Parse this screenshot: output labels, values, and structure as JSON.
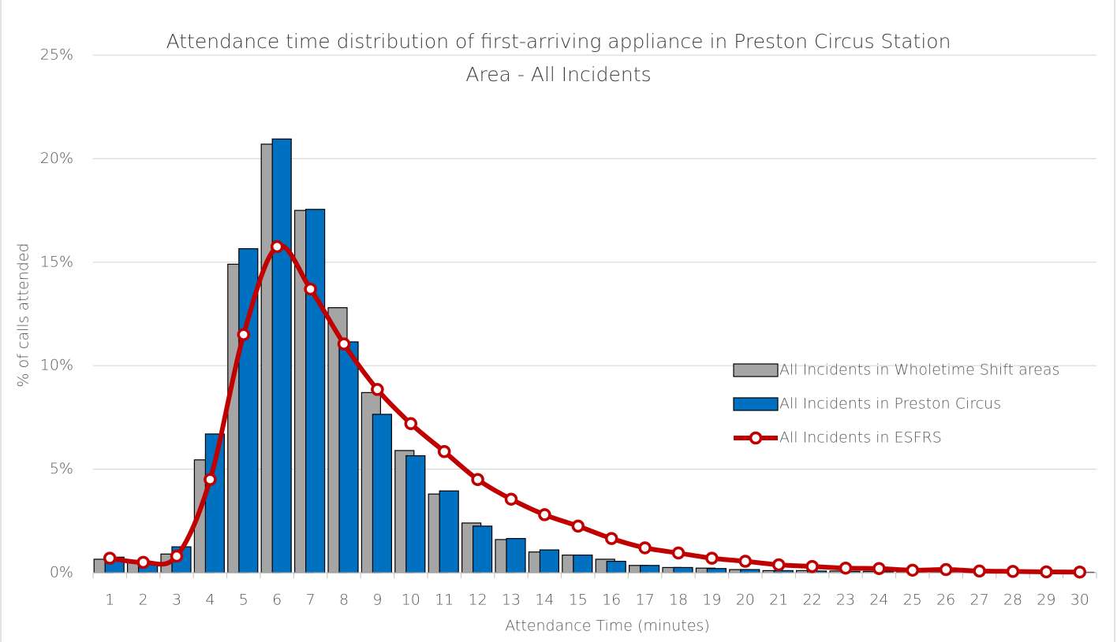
{
  "chart_data": {
    "type": "bar_line",
    "title": [
      "Attendance time distribution of first-arriving appliance in Preston Circus Station",
      "Area - All Incidents"
    ],
    "x_label": "Attendance Time (minutes)",
    "y_label": "% of calls attended",
    "categories": [
      "1",
      "2",
      "3",
      "4",
      "5",
      "6",
      "7",
      "8",
      "9",
      "10",
      "11",
      "12",
      "13",
      "14",
      "15",
      "16",
      "17",
      "18",
      "19",
      "20",
      "21",
      "22",
      "23",
      "24",
      "25",
      "26",
      "27",
      "28",
      "29",
      "30"
    ],
    "series": [
      {
        "name": "All Incidents in Wholetime Shift areas",
        "type": "bar",
        "color": "#a5a5a5",
        "values": [
          0.65,
          0.5,
          0.9,
          5.45,
          14.9,
          20.7,
          17.5,
          12.8,
          8.7,
          5.9,
          3.8,
          2.4,
          1.6,
          1.0,
          0.85,
          0.65,
          0.35,
          0.25,
          0.22,
          0.15,
          0.1,
          0.1,
          0.08,
          0.06,
          0.05,
          0.04,
          0.03,
          0.03,
          0.02,
          0.02
        ]
      },
      {
        "name": "All Incidents in Preston Circus",
        "type": "bar",
        "color": "#0070c0",
        "values": [
          0.75,
          0.45,
          1.25,
          6.7,
          15.65,
          20.95,
          17.55,
          11.15,
          7.65,
          5.65,
          3.95,
          2.25,
          1.65,
          1.1,
          0.85,
          0.55,
          0.35,
          0.25,
          0.2,
          0.15,
          0.1,
          0.08,
          0.06,
          0.05,
          0.04,
          0.03,
          0.03,
          0.02,
          0.02,
          0.02
        ]
      },
      {
        "name": "All Incidents in ESFRS",
        "type": "line",
        "color": "#c00000",
        "values": [
          0.7,
          0.5,
          0.8,
          4.5,
          11.5,
          15.75,
          13.7,
          11.05,
          8.85,
          7.2,
          5.85,
          4.5,
          3.55,
          2.8,
          2.25,
          1.65,
          1.2,
          0.95,
          0.7,
          0.55,
          0.38,
          0.3,
          0.22,
          0.2,
          0.12,
          0.15,
          0.08,
          0.06,
          0.04,
          0.03
        ]
      }
    ],
    "ylim": [
      0,
      25
    ],
    "yticks": [
      {
        "value": 0,
        "label": "0%"
      },
      {
        "value": 5,
        "label": "5%"
      },
      {
        "value": 10,
        "label": "10%"
      },
      {
        "value": 15,
        "label": "15%"
      },
      {
        "value": 20,
        "label": "20%"
      },
      {
        "value": 25,
        "label": "25%"
      }
    ],
    "grid": true,
    "legend": "right"
  }
}
